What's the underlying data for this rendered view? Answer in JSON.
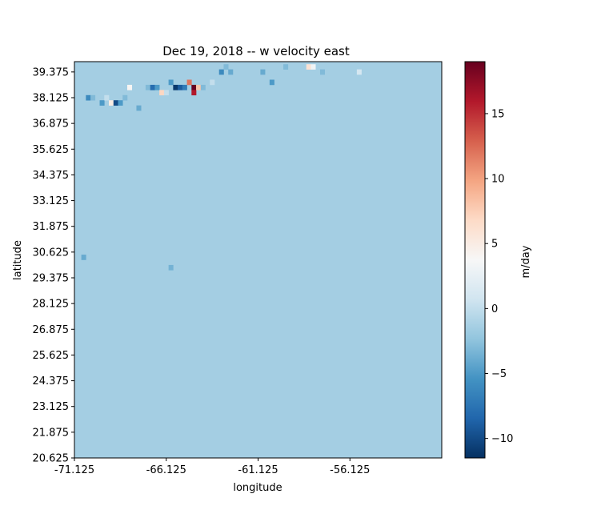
{
  "chart_data": {
    "type": "heatmap",
    "title": "Dec 19, 2018 -- w velocity east",
    "xlabel": "longitude",
    "ylabel": "latitude",
    "xlim": [
      -71.125,
      -51.125
    ],
    "ylim": [
      20.625,
      39.875
    ],
    "x_ticks": [
      "-71.125",
      "-66.125",
      "-61.125",
      "-56.125"
    ],
    "x_tick_values": [
      -71.125,
      -66.125,
      -61.125,
      -56.125
    ],
    "y_ticks": [
      "20.625",
      "21.875",
      "23.125",
      "24.375",
      "25.625",
      "26.875",
      "28.125",
      "29.375",
      "30.625",
      "31.875",
      "33.125",
      "34.375",
      "35.625",
      "36.875",
      "38.125",
      "39.375"
    ],
    "y_tick_values": [
      20.625,
      21.875,
      23.125,
      24.375,
      25.625,
      26.875,
      28.125,
      29.375,
      30.625,
      31.875,
      33.125,
      34.375,
      35.625,
      36.875,
      38.125,
      39.375
    ],
    "grid": false,
    "cell_size_deg": 0.25,
    "background_value": -1.5,
    "colorbar": {
      "label": "m/day",
      "colormap": "RdBu_r",
      "vmin": -11.5,
      "vmax": 19,
      "ticks": [
        "−10",
        "−5",
        "0",
        "5",
        "10",
        "15"
      ],
      "tick_values": [
        -10,
        -5,
        0,
        5,
        10,
        15
      ]
    },
    "notable_cells": [
      {
        "lon": -70.5,
        "lat": 38.0,
        "w": -6
      },
      {
        "lon": -70.25,
        "lat": 38.0,
        "w": -3
      },
      {
        "lon": -69.75,
        "lat": 37.75,
        "w": -5
      },
      {
        "lon": -69.5,
        "lat": 38.0,
        "w": 0
      },
      {
        "lon": -69.25,
        "lat": 37.75,
        "w": 5
      },
      {
        "lon": -69.0,
        "lat": 37.75,
        "w": -10
      },
      {
        "lon": -68.75,
        "lat": 37.75,
        "w": -5
      },
      {
        "lon": -68.5,
        "lat": 38.0,
        "w": -3
      },
      {
        "lon": -68.25,
        "lat": 38.5,
        "w": 4
      },
      {
        "lon": -67.25,
        "lat": 38.5,
        "w": -3
      },
      {
        "lon": -67.0,
        "lat": 38.5,
        "w": -8
      },
      {
        "lon": -66.75,
        "lat": 38.5,
        "w": -5
      },
      {
        "lon": -66.5,
        "lat": 38.25,
        "w": 7
      },
      {
        "lon": -66.25,
        "lat": 38.25,
        "w": 0
      },
      {
        "lon": -66.0,
        "lat": 38.75,
        "w": -5
      },
      {
        "lon": -65.75,
        "lat": 38.5,
        "w": -11
      },
      {
        "lon": -65.5,
        "lat": 38.5,
        "w": -9
      },
      {
        "lon": -65.25,
        "lat": 38.5,
        "w": -7
      },
      {
        "lon": -65.0,
        "lat": 38.75,
        "w": 12
      },
      {
        "lon": -64.75,
        "lat": 38.5,
        "w": 19
      },
      {
        "lon": -64.75,
        "lat": 38.25,
        "w": 16
      },
      {
        "lon": -64.5,
        "lat": 38.5,
        "w": 8
      },
      {
        "lon": -64.25,
        "lat": 38.5,
        "w": -3
      },
      {
        "lon": -63.75,
        "lat": 38.75,
        "w": 0
      },
      {
        "lon": -63.25,
        "lat": 39.25,
        "w": -6
      },
      {
        "lon": -63.0,
        "lat": 39.5,
        "w": -3
      },
      {
        "lon": -62.75,
        "lat": 39.25,
        "w": -4
      },
      {
        "lon": -61.0,
        "lat": 39.25,
        "w": -4
      },
      {
        "lon": -60.5,
        "lat": 38.75,
        "w": -5
      },
      {
        "lon": -59.75,
        "lat": 39.5,
        "w": -3
      },
      {
        "lon": -58.5,
        "lat": 39.5,
        "w": 6
      },
      {
        "lon": -58.25,
        "lat": 39.5,
        "w": 3
      },
      {
        "lon": -57.75,
        "lat": 39.25,
        "w": -3
      },
      {
        "lon": -55.75,
        "lat": 39.25,
        "w": 1
      },
      {
        "lon": -67.75,
        "lat": 37.5,
        "w": -4
      },
      {
        "lon": -70.75,
        "lat": 30.25,
        "w": -4
      },
      {
        "lon": -66.0,
        "lat": 29.75,
        "w": -3.5
      }
    ]
  }
}
